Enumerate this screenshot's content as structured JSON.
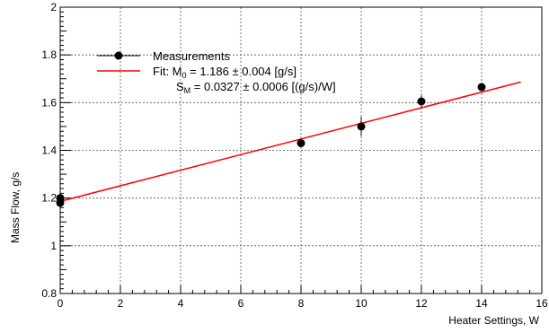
{
  "chart_data": {
    "type": "scatter",
    "title": "",
    "xlabel": "Heater Settings, W",
    "ylabel": "Mass Flow, g/s",
    "xlim": [
      0,
      16
    ],
    "ylim": [
      0.8,
      2
    ],
    "xticks": [
      0,
      2,
      4,
      6,
      8,
      10,
      12,
      14,
      16
    ],
    "xtick_labels": [
      "0",
      "2",
      "4",
      "6",
      "8",
      "10",
      "12",
      "14",
      "16"
    ],
    "yticks": [
      0.8,
      1,
      1.2,
      1.4,
      1.6,
      1.8,
      2
    ],
    "ytick_labels": [
      "0.8",
      "1",
      "1.2",
      "1.4",
      "1.6",
      "1.8",
      "2"
    ],
    "grid": true,
    "legend_position": "top-left",
    "measurements": {
      "name": "Measurements",
      "color": "#000000",
      "points": [
        {
          "x": 0,
          "y": 1.2,
          "yerr": 0.01
        },
        {
          "x": 0,
          "y": 1.18,
          "yerr": 0.01
        },
        {
          "x": 8,
          "y": 1.43,
          "yerr": 0.01
        },
        {
          "x": 10,
          "y": 1.5,
          "yerr": 0.04
        },
        {
          "x": 12,
          "y": 1.605,
          "yerr": 0.025
        },
        {
          "x": 14,
          "y": 1.665,
          "yerr": 0.01
        }
      ]
    },
    "fit": {
      "name": "Fit",
      "color": "#ff0000",
      "intercept": 1.186,
      "slope": 0.0327,
      "x_range": [
        0,
        15.3
      ],
      "legend_line1_prefix": "Fit: M",
      "legend_line1_sub": "0",
      "legend_line1_suffix": " = 1.186 ± 0.004 [g/s]",
      "legend_line2_prefix": "S",
      "legend_line2_sub": "M",
      "legend_line2_suffix": " = 0.0327 ± 0.0006 [(g/s)/W]"
    }
  }
}
